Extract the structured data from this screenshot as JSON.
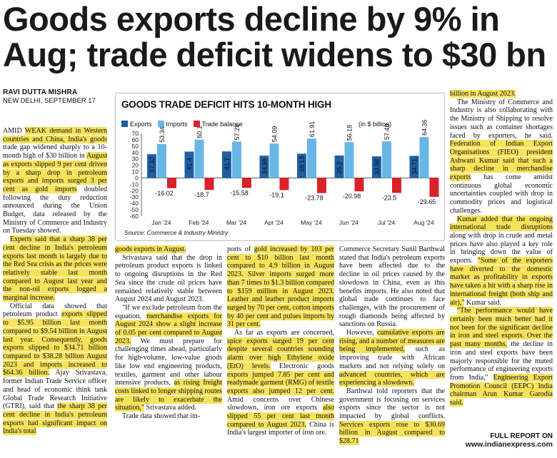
{
  "headline": {
    "line1": "Goods exports decline by 9% in",
    "line2": "Aug; trade deficit widens to $30 bn"
  },
  "byline": {
    "name": "RAVI DUTTA MISHRA",
    "place": "NEW DELHI, SEPTEMBER 17"
  },
  "chart_data": {
    "type": "bar",
    "title": "GOODS TRADE DEFICIT HITS 10-MONTH HIGH",
    "unit": "(in $ billion)",
    "source": "Source: Commerce & Industry Ministry",
    "categories": [
      "Jan '24",
      "Feb '24",
      "Mar '24",
      "Apr '24",
      "May '24",
      "Jun '24",
      "Jul '24",
      "Aug '24"
    ],
    "series": [
      {
        "name": "Exports",
        "color": "#1f5fa3",
        "values": [
          37.32,
          41.4,
          41.7,
          34.99,
          38.13,
          35.2,
          33.98,
          34.71
        ]
      },
      {
        "name": "Imports",
        "color": "#67b7e6",
        "values": [
          53.34,
          60.1,
          57.28,
          54.09,
          61.91,
          56.18,
          57.48,
          64.36
        ]
      },
      {
        "name": "Trade balance",
        "color": "#d9222a",
        "values": [
          -16.02,
          -18.7,
          -15.58,
          -19.1,
          -23.78,
          -20.98,
          -23.5,
          -29.65
        ]
      }
    ],
    "value_labels": {
      "exports": [
        "37.32",
        "41.4",
        "41.7",
        "34.99",
        "38.13",
        "35.2",
        "33.98",
        "34.71"
      ],
      "imports": [
        "53.34",
        "60.1",
        "57.28",
        "54.09",
        "61.91",
        "56.18",
        "57.48",
        "64.36"
      ],
      "balance": [
        "-16.02",
        "-18.7",
        "-15.58",
        "-19.1",
        "-23.78",
        "-20.98",
        "-23.5",
        "-29.65"
      ]
    },
    "yticks": [
      70,
      60,
      50,
      40,
      30,
      20,
      10,
      0,
      -10,
      -20,
      -30,
      -40,
      -50,
      -60
    ],
    "yrange": [
      -60,
      70
    ],
    "grid": false,
    "legend": "top-left"
  },
  "article": {
    "c1": {
      "p1": [
        {
          "t": "AMID ",
          "h": false
        },
        {
          "t": "WEAK demand in Western countries and China, India's goods",
          "h": true
        },
        {
          "t": " trade gap widened sharply to a 10-month high of $30 billion in ",
          "h": false
        },
        {
          "t": "August as exports slipped 9 per cent driven by a sharp drop in petroleum exports and imports surged 3 per cent as gold imports",
          "h": true
        },
        {
          "t": " doubled following the duty reduction announced during the Union Budget, data released by the Ministry of Commerce and Industry on Tuesday showed.",
          "h": false
        }
      ],
      "p2": [
        {
          "t": "Experts said that a sharp 38 per cent decline in India's petroleum exports last month is largely due to the Red Sea crisis as the prices were relatively stable last month compared to August last year and the non-oil exports logged a marginal increase.",
          "h": true
        }
      ],
      "p3": [
        {
          "t": "Official data showed that petroleum product ",
          "h": false
        },
        {
          "t": "exports slipped to $5.95 billion last month compared to $9.54 billion in August last year. Consequently, goods exports slipped to $34.71 billion compared to $38.28 billion August 2023 and imports increased to $64.36 billion.",
          "h": true
        },
        {
          "t": " Ajay Srivastava, former Indian Trade Service officer and head of economic think tank Global Trade Research Initiative (GTRI), said that ",
          "h": false
        },
        {
          "t": "the sharp 38 per cent decline in India's petroleum exports had significant impact on India's total",
          "h": true
        }
      ]
    },
    "c2": {
      "p1": [
        {
          "t": "goods exports in August.",
          "h": true
        }
      ],
      "p2": [
        {
          "t": "Srivastava said that the drop in petroleum product exports is linked to ongoing disruptions in the Red Sea since the crude oil prices have remained relatively stable between August 2024 and August 2023.",
          "h": false
        }
      ],
      "p3": [
        {
          "t": "\"If we exclude petroleum from the equation, ",
          "h": false
        },
        {
          "t": "merchandise exports for August 2024 show a slight increase of 0.05 per cent compared to August 2023.",
          "h": true
        },
        {
          "t": " We must prepare for challenging times ahead, particularly for high-volume, low-value goods like low end engineering products, textiles, garment and other labour intensive products, ",
          "h": false
        },
        {
          "t": "as rising freight costs linked to longer shipping routes are likely to exacerbate the situation,\"",
          "h": true
        },
        {
          "t": " Srivastava added.",
          "h": false
        }
      ],
      "p4": [
        {
          "t": "Trade data showed that im-",
          "h": false
        }
      ]
    },
    "c3": {
      "p1": [
        {
          "t": "ports of ",
          "h": false
        },
        {
          "t": "gold increased by 103 per cent to $10 billion last month compared to 4.9 billion in August 2023.",
          "h": true
        },
        {
          "t": " Silver imports surged more than 7 times to $1.3 billion compared to $159 million in August 2023. Leather and leather product imports surged by 70 per cent, cotton imports by 40 per cent and pulses imports by 31 per cent.",
          "h": true
        }
      ],
      "p2": [
        {
          "t": "As far as exports are concerned, ",
          "h": false
        },
        {
          "t": "spice exports surged 19 per cent despite several countries sounding alarm over high Ethylene oxide (EtO) levels.",
          "h": true
        },
        {
          "t": " Electronic goods ",
          "h": false
        },
        {
          "t": "exports jumped 7.85 per cent and readymade garment (RMG) of textile exports also jumped 12 per cent.",
          "h": true
        },
        {
          "t": " Amid concerns over Chinese slowdown, iron ore exports ",
          "h": false
        },
        {
          "t": "also slipped 55 per cent last month compared to August 2023.",
          "h": true
        },
        {
          "t": " China is India's largest importer of iron ore.",
          "h": false
        }
      ]
    },
    "c4": {
      "p1": [
        {
          "t": "Commerce Secretary Sunil Barthwal stated that India's petroleum exports have been affected due to the decline in oil prices caused by the slowdown in China, even as this benefits imports. He also noted that global trade continues to face challenges, with the procurement of rough diamonds being affected by sanctions on Russia.",
          "h": false
        }
      ],
      "p2": [
        {
          "t": "However, ",
          "h": false
        },
        {
          "t": "cumulative exports are rising, and a number of measures are being implemented,",
          "h": true
        },
        {
          "t": " such as improving trade with African markets and not relying solely on ",
          "h": false
        },
        {
          "t": "advanced countries, which are experiencing a slowdown.",
          "h": true
        }
      ],
      "p3": [
        {
          "t": "Barthwal told reporters that the government is focusing on services exports since the sector is not impacted by global conflicts. ",
          "h": false
        },
        {
          "t": "Services exports rose to $30.69 billion in August compared to $28.71",
          "h": true
        }
      ]
    },
    "c5": {
      "p1": [
        {
          "t": "billion in August 2023.",
          "h": true
        }
      ],
      "p2": [
        {
          "t": "The Ministry of Commerce and Industry is also collaborating with the Ministry of Shipping to resolve issues such as container shortages faced by exporters, he said. ",
          "h": false
        },
        {
          "t": "Federation of Indian Export Organisations (FIEO) president Ashwani Kumar said that such a sharp decline in merchandise exports",
          "h": true
        },
        {
          "t": " has come amidst continuous global economic uncertainties coupled with drop in commodity prices and logistical challenges.",
          "h": false
        }
      ],
      "p3": [
        {
          "t": "Kumar added that the ongoing international trade disruptions",
          "h": true
        },
        {
          "t": " along with drop in crude and metal prices have also played a key role in bringing down the value of exports. ",
          "h": false
        },
        {
          "t": "\"Some of the exporters have diverted to the domestic market as profitability in exports have taken a hit with a sharp rise in international freight (both ship and air),\"",
          "h": true
        },
        {
          "t": " Kumar said.",
          "h": false
        }
      ],
      "p4": [
        {
          "t": "\"The performance would have certainly been much better had it not been for the significant decline in iron and steel exports. Over the past many months,",
          "h": true
        },
        {
          "t": " the decline in iron and steel exports have been majorly responsible for the muted performance of engineering exports from India,\" ",
          "h": false
        },
        {
          "t": "Engineering Export Promotion Council (EEPC) India chairman Arun Kumar Garodia said.",
          "h": true
        }
      ]
    }
  },
  "footer": {
    "full_report": "FULL REPORT ON",
    "url": "www.indianexpress.com"
  }
}
